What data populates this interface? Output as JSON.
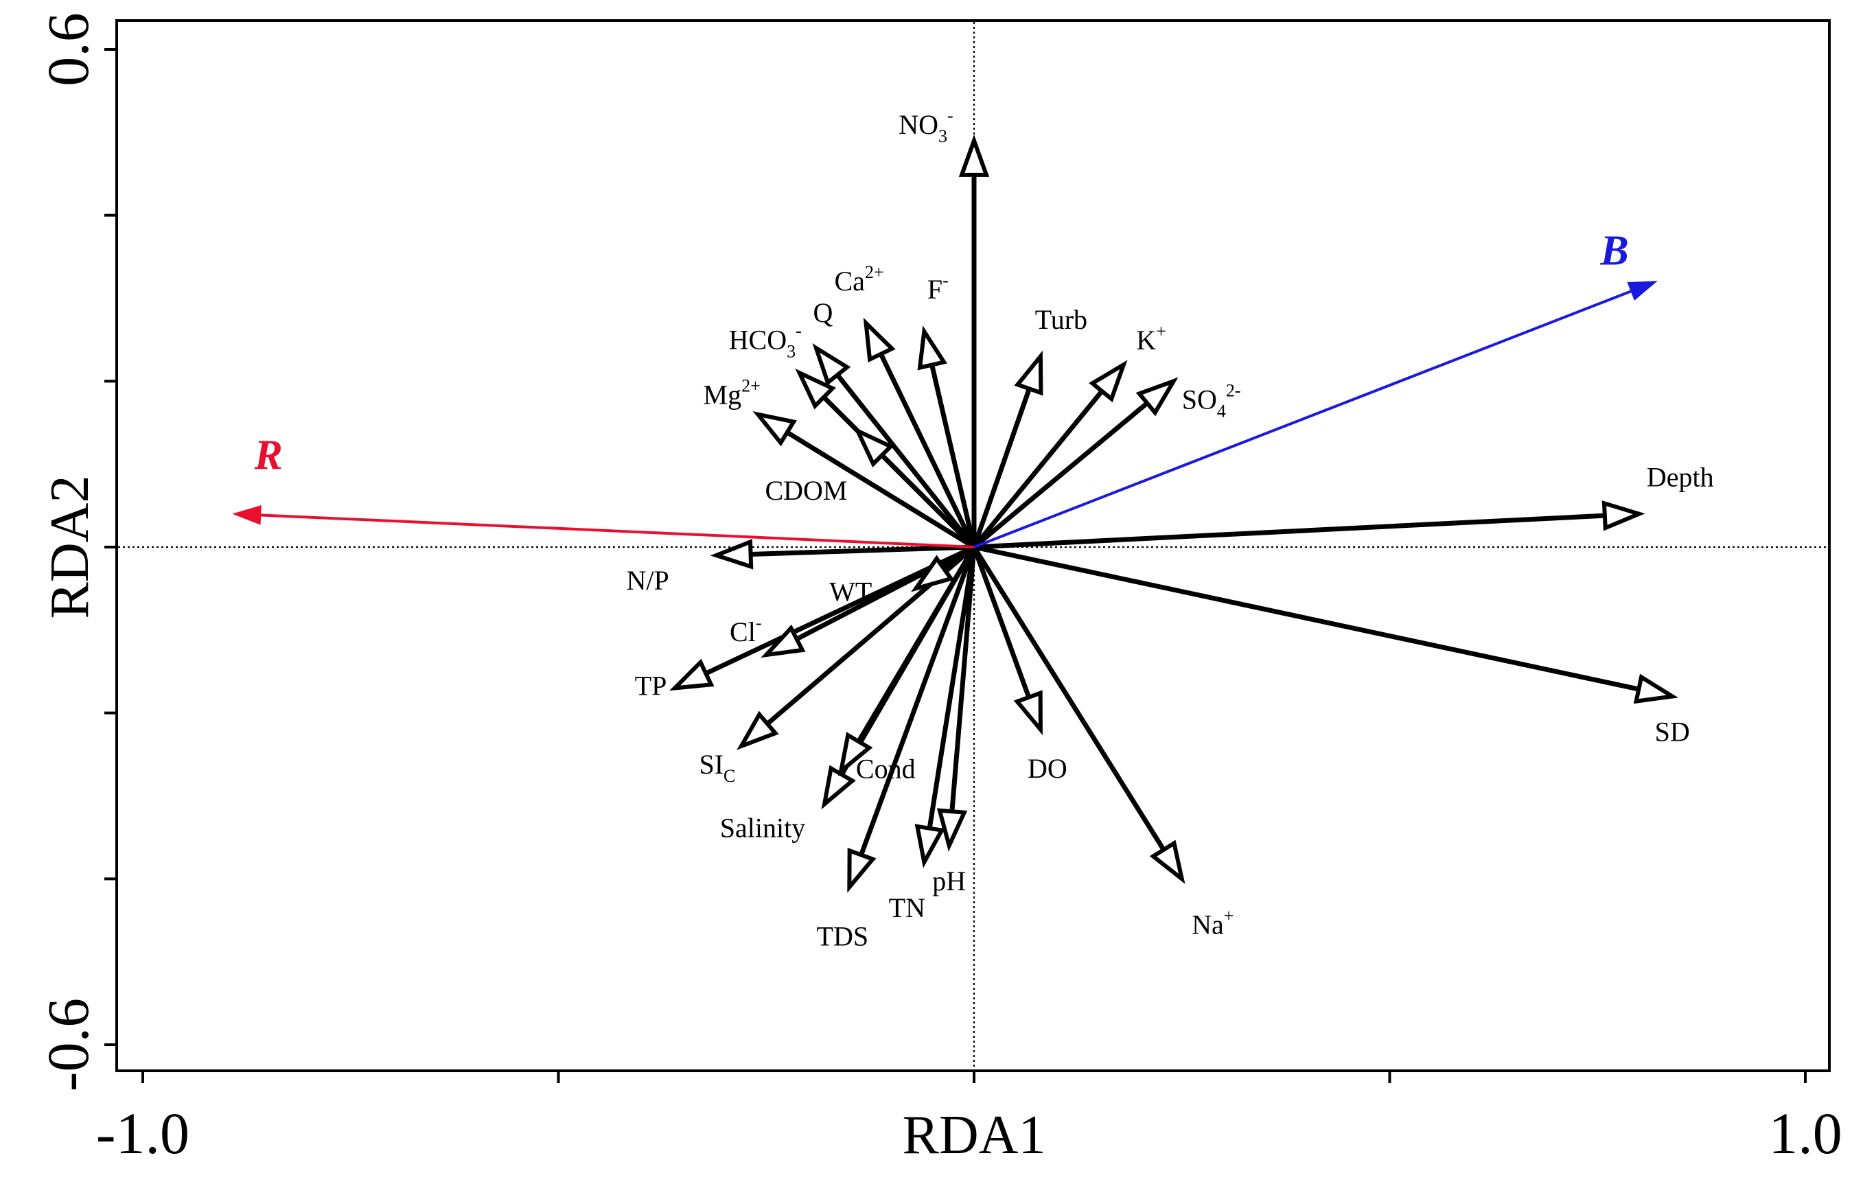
{
  "chart_data": {
    "type": "biplot",
    "xlabel": "RDA1",
    "ylabel": "RDA2",
    "xlim": [
      -1.0,
      1.0
    ],
    "ylim": [
      -0.6,
      0.6
    ],
    "x_tick_labels": [
      "-1.0",
      "1.0"
    ],
    "y_tick_labels": [
      "0.6",
      "-0.6"
    ],
    "x_ticks": [
      -1.0,
      -0.5,
      0.0,
      0.5,
      1.0
    ],
    "y_ticks": [
      -0.6,
      -0.4,
      -0.2,
      0.0,
      0.2,
      0.4,
      0.6
    ],
    "reference_lines": {
      "x": 0.0,
      "y": 0.0
    },
    "environment_vectors": [
      {
        "name": "NO3-",
        "text": "NO",
        "sub": "3",
        "sup": "-",
        "x": 0.0,
        "y": 0.49
      },
      {
        "name": "Ca2+",
        "text": "Ca",
        "sup": "2+",
        "x": -0.13,
        "y": 0.27
      },
      {
        "name": "F-",
        "text": "F",
        "sup": "-",
        "x": -0.06,
        "y": 0.26
      },
      {
        "name": "HCO3-",
        "text": "HCO",
        "sub": "3",
        "sup": "-",
        "x": -0.21,
        "y": 0.21
      },
      {
        "name": "Q",
        "text": "Q",
        "x": -0.19,
        "y": 0.24
      },
      {
        "name": "Mg2+",
        "text": "Mg",
        "sup": "2+",
        "x": -0.26,
        "y": 0.16
      },
      {
        "name": "CDOM",
        "text": "CDOM",
        "x": -0.14,
        "y": 0.14
      },
      {
        "name": "Turb",
        "text": "Turb",
        "x": 0.08,
        "y": 0.23
      },
      {
        "name": "K+",
        "text": "K",
        "sup": "+",
        "x": 0.18,
        "y": 0.22
      },
      {
        "name": "SO42-",
        "text": "SO",
        "sub": "4",
        "sup": "2-",
        "x": 0.24,
        "y": 0.2
      },
      {
        "name": "Depth",
        "text": "Depth",
        "x": 0.8,
        "y": 0.04
      },
      {
        "name": "SD",
        "text": "SD",
        "x": 0.84,
        "y": -0.18
      },
      {
        "name": "Na+",
        "text": "Na",
        "sup": "+",
        "x": 0.25,
        "y": -0.4
      },
      {
        "name": "DO",
        "text": "DO",
        "x": 0.08,
        "y": -0.22
      },
      {
        "name": "pH",
        "text": "pH",
        "x": -0.03,
        "y": -0.36
      },
      {
        "name": "TN",
        "text": "TN",
        "x": -0.06,
        "y": -0.38
      },
      {
        "name": "TDS",
        "text": "TDS",
        "x": -0.15,
        "y": -0.41
      },
      {
        "name": "Salinity",
        "text": "Salinity",
        "x": -0.18,
        "y": -0.31
      },
      {
        "name": "Cond",
        "text": "Cond",
        "x": -0.16,
        "y": -0.27
      },
      {
        "name": "SIC",
        "text": "SI",
        "sub": "C",
        "x": -0.28,
        "y": -0.24
      },
      {
        "name": "TP",
        "text": "TP",
        "x": -0.36,
        "y": -0.17
      },
      {
        "name": "Cl-",
        "text": "Cl",
        "sup": "-",
        "x": -0.25,
        "y": -0.13
      },
      {
        "name": "WT",
        "text": "WT",
        "x": -0.07,
        "y": -0.05
      },
      {
        "name": "N/P",
        "text": "N/P",
        "x": -0.31,
        "y": -0.01
      }
    ],
    "biological_vectors": [
      {
        "name": "R",
        "text": "R",
        "color": "#e8102e",
        "x": -0.89,
        "y": 0.04
      },
      {
        "name": "B",
        "text": "B",
        "color": "#1a1adf",
        "x": 0.82,
        "y": 0.32
      }
    ]
  }
}
